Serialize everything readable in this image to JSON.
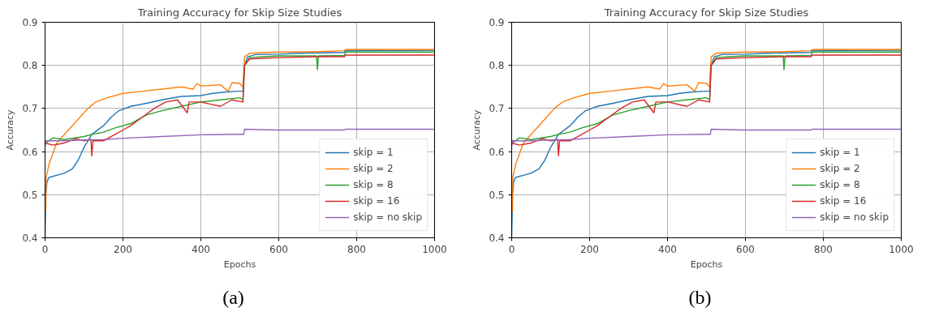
{
  "chart_data": [
    {
      "type": "line",
      "title": "Training Accuracy for Skip Size Studies",
      "xlabel": "Epochs",
      "ylabel": "Accuracy",
      "xlim": [
        0,
        1000
      ],
      "xticks": [
        0,
        200,
        400,
        600,
        800,
        1000
      ],
      "ylim": [
        0.4,
        0.9
      ],
      "yticks": [
        0.4,
        0.5,
        0.6,
        0.7,
        0.8,
        0.9
      ],
      "grid": true,
      "legend": "bottom right",
      "marker": "none",
      "line_style": "solid",
      "annotations": [
        "(a)"
      ],
      "series": [
        {
          "name": "skip = 1",
          "color": "#1f77b4",
          "x": [
            0,
            2,
            5,
            10,
            30,
            50,
            70,
            85,
            100,
            120,
            150,
            170,
            190,
            220,
            260,
            300,
            350,
            400,
            430,
            460,
            490,
            508,
            512,
            520,
            540,
            600,
            650,
            700,
            768,
            770,
            1000
          ],
          "values": [
            0.4,
            0.5,
            0.53,
            0.54,
            0.545,
            0.55,
            0.56,
            0.58,
            0.61,
            0.64,
            0.66,
            0.68,
            0.695,
            0.705,
            0.712,
            0.72,
            0.728,
            0.73,
            0.735,
            0.738,
            0.74,
            0.74,
            0.8,
            0.82,
            0.825,
            0.826,
            0.828,
            0.829,
            0.83,
            0.834,
            0.835
          ]
        },
        {
          "name": "skip = 2",
          "color": "#ff7f0e",
          "x": [
            2,
            3,
            10,
            30,
            50,
            70,
            90,
            110,
            130,
            160,
            200,
            250,
            300,
            350,
            380,
            390,
            400,
            450,
            470,
            480,
            500,
            508,
            512,
            525,
            600,
            700,
            768,
            772,
            1000
          ],
          "values": [
            0.46,
            0.54,
            0.57,
            0.62,
            0.64,
            0.66,
            0.68,
            0.7,
            0.715,
            0.725,
            0.735,
            0.74,
            0.745,
            0.75,
            0.745,
            0.758,
            0.752,
            0.755,
            0.74,
            0.76,
            0.758,
            0.75,
            0.82,
            0.828,
            0.831,
            0.832,
            0.834,
            0.837,
            0.837
          ]
        },
        {
          "name": "skip = 8",
          "color": "#2ca02c",
          "x": [
            0,
            2,
            20,
            50,
            100,
            120,
            150,
            180,
            220,
            260,
            300,
            350,
            400,
            450,
            500,
            508,
            512,
            525,
            560,
            600,
            697,
            699,
            702,
            768,
            772,
            1000
          ],
          "values": [
            0.62,
            0.62,
            0.632,
            0.628,
            0.635,
            0.64,
            0.645,
            0.655,
            0.665,
            0.685,
            0.695,
            0.705,
            0.715,
            0.72,
            0.725,
            0.72,
            0.8,
            0.818,
            0.82,
            0.822,
            0.822,
            0.79,
            0.822,
            0.823,
            0.831,
            0.831
          ]
        },
        {
          "name": "skip = 16",
          "color": "#d62728",
          "x": [
            0,
            20,
            50,
            80,
            100,
            118,
            120,
            123,
            150,
            160,
            180,
            200,
            220,
            250,
            280,
            310,
            340,
            365,
            370,
            400,
            450,
            480,
            508,
            512,
            525,
            600,
            700,
            768,
            772,
            1000
          ],
          "values": [
            0.62,
            0.615,
            0.62,
            0.63,
            0.625,
            0.628,
            0.59,
            0.625,
            0.625,
            0.63,
            0.64,
            0.65,
            0.66,
            0.68,
            0.7,
            0.715,
            0.72,
            0.69,
            0.715,
            0.715,
            0.705,
            0.72,
            0.715,
            0.8,
            0.815,
            0.818,
            0.82,
            0.82,
            0.824,
            0.824
          ]
        },
        {
          "name": "skip = no skip",
          "color": "#9467bd",
          "x": [
            0,
            2,
            20,
            50,
            100,
            150,
            200,
            300,
            400,
            500,
            510,
            512,
            600,
            700,
            768,
            772,
            1000
          ],
          "values": [
            0.61,
            0.625,
            0.625,
            0.625,
            0.627,
            0.628,
            0.631,
            0.635,
            0.639,
            0.64,
            0.64,
            0.652,
            0.65,
            0.65,
            0.65,
            0.652,
            0.652
          ]
        }
      ]
    },
    {
      "type": "line",
      "title": "Training Accuracy for Skip Size Studies",
      "xlabel": "Epochs",
      "ylabel": "Accuracy",
      "xlim": [
        0,
        1000
      ],
      "xticks": [
        0,
        200,
        400,
        600,
        800,
        1000
      ],
      "ylim": [
        0.4,
        0.9
      ],
      "yticks": [
        0.4,
        0.5,
        0.6,
        0.7,
        0.8,
        0.9
      ],
      "grid": true,
      "legend": "bottom right",
      "marker": "none",
      "line_style": "solid",
      "annotations": [
        "(b)"
      ],
      "series": [
        {
          "name": "skip = 1",
          "color": "#1f77b4",
          "x": [
            0,
            2,
            5,
            10,
            30,
            50,
            70,
            85,
            100,
            120,
            150,
            170,
            190,
            220,
            260,
            300,
            350,
            400,
            430,
            460,
            490,
            508,
            512,
            520,
            540,
            600,
            650,
            700,
            768,
            770,
            1000
          ],
          "values": [
            0.4,
            0.5,
            0.53,
            0.54,
            0.545,
            0.55,
            0.56,
            0.58,
            0.61,
            0.64,
            0.66,
            0.68,
            0.695,
            0.705,
            0.712,
            0.72,
            0.728,
            0.73,
            0.735,
            0.738,
            0.74,
            0.74,
            0.8,
            0.82,
            0.825,
            0.826,
            0.828,
            0.829,
            0.83,
            0.834,
            0.835
          ]
        },
        {
          "name": "skip = 2",
          "color": "#ff7f0e",
          "x": [
            2,
            3,
            10,
            30,
            50,
            70,
            90,
            110,
            130,
            160,
            200,
            250,
            300,
            350,
            380,
            390,
            400,
            450,
            470,
            480,
            500,
            508,
            512,
            525,
            600,
            700,
            768,
            772,
            1000
          ],
          "values": [
            0.46,
            0.54,
            0.57,
            0.62,
            0.64,
            0.66,
            0.68,
            0.7,
            0.715,
            0.725,
            0.735,
            0.74,
            0.745,
            0.75,
            0.745,
            0.758,
            0.752,
            0.755,
            0.74,
            0.76,
            0.758,
            0.75,
            0.82,
            0.828,
            0.831,
            0.832,
            0.834,
            0.837,
            0.837
          ]
        },
        {
          "name": "skip = 8",
          "color": "#2ca02c",
          "x": [
            0,
            2,
            20,
            50,
            100,
            120,
            150,
            180,
            220,
            260,
            300,
            350,
            400,
            450,
            500,
            508,
            512,
            525,
            560,
            600,
            697,
            699,
            702,
            768,
            772,
            1000
          ],
          "values": [
            0.62,
            0.62,
            0.632,
            0.628,
            0.635,
            0.64,
            0.645,
            0.655,
            0.665,
            0.685,
            0.695,
            0.705,
            0.715,
            0.72,
            0.725,
            0.72,
            0.8,
            0.818,
            0.82,
            0.822,
            0.822,
            0.79,
            0.822,
            0.823,
            0.831,
            0.831
          ]
        },
        {
          "name": "skip = 16",
          "color": "#d62728",
          "x": [
            0,
            20,
            50,
            80,
            100,
            118,
            120,
            123,
            150,
            160,
            180,
            200,
            220,
            250,
            280,
            310,
            340,
            365,
            370,
            400,
            450,
            480,
            508,
            512,
            525,
            600,
            700,
            768,
            772,
            1000
          ],
          "values": [
            0.62,
            0.615,
            0.62,
            0.63,
            0.625,
            0.628,
            0.59,
            0.625,
            0.625,
            0.63,
            0.64,
            0.65,
            0.66,
            0.68,
            0.7,
            0.715,
            0.72,
            0.69,
            0.715,
            0.715,
            0.705,
            0.72,
            0.715,
            0.8,
            0.815,
            0.818,
            0.82,
            0.82,
            0.824,
            0.824
          ]
        },
        {
          "name": "skip = no skip",
          "color": "#9467bd",
          "x": [
            0,
            2,
            20,
            50,
            100,
            150,
            200,
            300,
            400,
            500,
            510,
            512,
            600,
            700,
            768,
            772,
            1000
          ],
          "values": [
            0.61,
            0.625,
            0.625,
            0.625,
            0.627,
            0.628,
            0.631,
            0.635,
            0.639,
            0.64,
            0.64,
            0.652,
            0.65,
            0.65,
            0.65,
            0.652,
            0.652
          ]
        }
      ]
    }
  ]
}
